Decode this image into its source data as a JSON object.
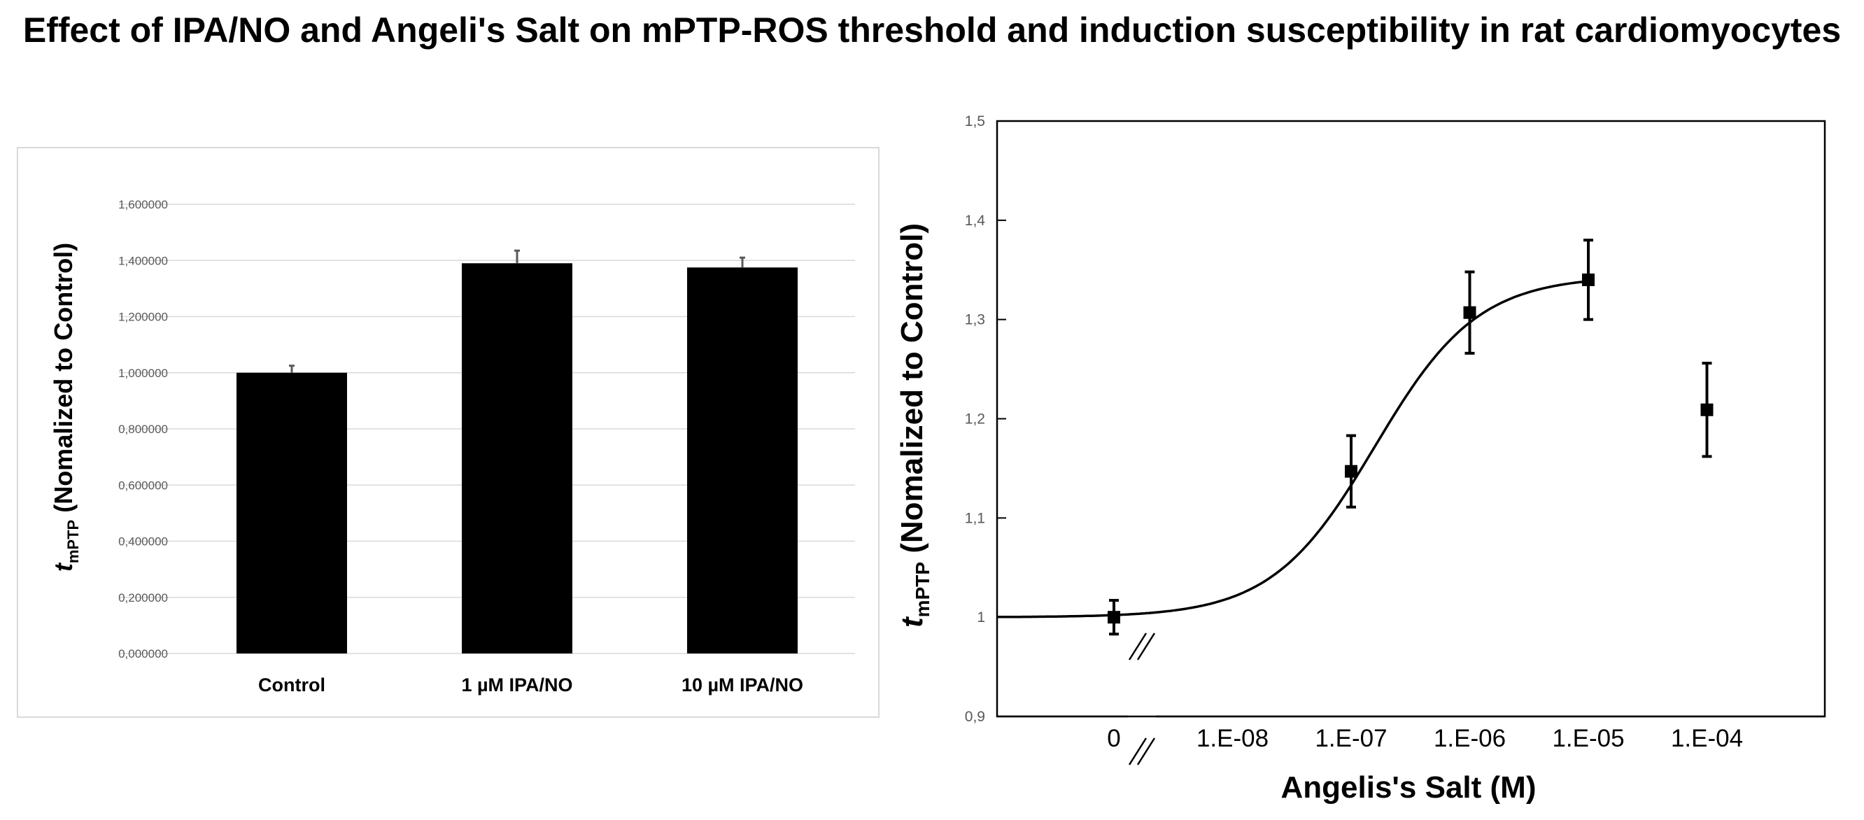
{
  "title": "Effect of IPA/NO and Angeli's Salt  on mPTP-ROS threshold and induction susceptibility in rat cardiomyocytes",
  "chart_data": [
    {
      "type": "bar",
      "title": "",
      "ylabel_main": "t",
      "ylabel_sub": "mPTP",
      "ylabel_rest": "(Nomalized to Control)",
      "categories": [
        "Control",
        "1 µM IPA/NO",
        "10 µM IPA/NO"
      ],
      "values": [
        1.0,
        1.39,
        1.375
      ],
      "errors": [
        0.025,
        0.045,
        0.035
      ],
      "ylim": [
        0,
        1.6
      ],
      "yticks": [
        0,
        0.2,
        0.4,
        0.6,
        0.8,
        1.0,
        1.2,
        1.4,
        1.6
      ],
      "ytick_labels": [
        "0,000000",
        "0,200000",
        "0,400000",
        "0,600000",
        "0,800000",
        "1,000000",
        "1,200000",
        "1,400000",
        "1,600000"
      ],
      "grid": true,
      "bar_color": "#000000"
    },
    {
      "type": "scatter",
      "title": "",
      "xlabel": "Angelis's Salt (M)",
      "ylabel_main": "t",
      "ylabel_sub": "mPTP",
      "ylabel_rest": "(Nomalized to Control)",
      "x_scale": "log10 with axis break",
      "x_tick_labels": [
        "0",
        "1.E-08",
        "1.E-07",
        "1.E-06",
        "1.E-05",
        "1.E-04"
      ],
      "x_tick_log": [
        -9,
        -8,
        -7,
        -6,
        -5,
        -4
      ],
      "ylim": [
        0.9,
        1.5
      ],
      "yticks": [
        0.9,
        1.0,
        1.1,
        1.2,
        1.3,
        1.4,
        1.5
      ],
      "ytick_labels": [
        "0,9",
        "1",
        "1,1",
        "1,2",
        "1,3",
        "1,4",
        "1,5"
      ],
      "points": [
        {
          "x_label": "0",
          "x_log": -9,
          "y": 1.0,
          "err": 0.017
        },
        {
          "x_label": "1.E-07",
          "x_log": -7,
          "y": 1.147,
          "err": 0.036
        },
        {
          "x_label": "1.E-06",
          "x_log": -6,
          "y": 1.307,
          "err": 0.041
        },
        {
          "x_label": "1.E-05",
          "x_log": -5,
          "y": 1.34,
          "err": 0.04
        },
        {
          "x_label": "1.E-04",
          "x_log": -4,
          "y": 1.209,
          "err": 0.047
        }
      ],
      "fit": {
        "model": "sigmoid",
        "bottom": 1.0,
        "top": 1.344,
        "log_ec50": -6.8,
        "hill": 1.0,
        "x_log_range": [
          -10,
          -5
        ]
      }
    }
  ]
}
